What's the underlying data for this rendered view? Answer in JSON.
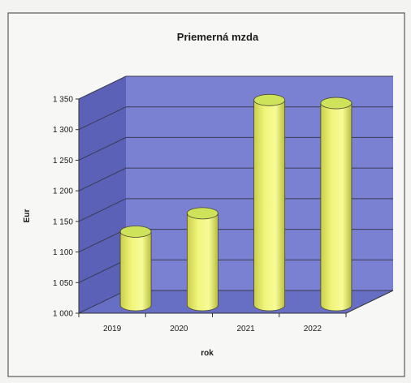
{
  "chart_data": {
    "type": "bar",
    "bar_shape": "cylinder-3d",
    "title": "Priemerná mzda",
    "xlabel": "rok",
    "ylabel": "Eur",
    "categories": [
      "2019",
      "2020",
      "2021",
      "2022"
    ],
    "values": [
      1120,
      1150,
      1335,
      1330
    ],
    "ylim": [
      1000,
      1350
    ],
    "yticks": [
      1000,
      1050,
      1100,
      1150,
      1200,
      1250,
      1300,
      1350
    ],
    "ytick_labels": [
      "1 000",
      "1 050",
      "1 100",
      "1 150",
      "1 200",
      "1 250",
      "1 300",
      "1 350"
    ],
    "grid": true,
    "legend": "none",
    "colors": {
      "back_wall": "#7a80d2",
      "side_wall": "#5a61b7",
      "floor": "#676fc5",
      "bar_body": "#f0f57a",
      "bar_top": "#cfe35a",
      "gridline": "#3a3a52"
    }
  }
}
